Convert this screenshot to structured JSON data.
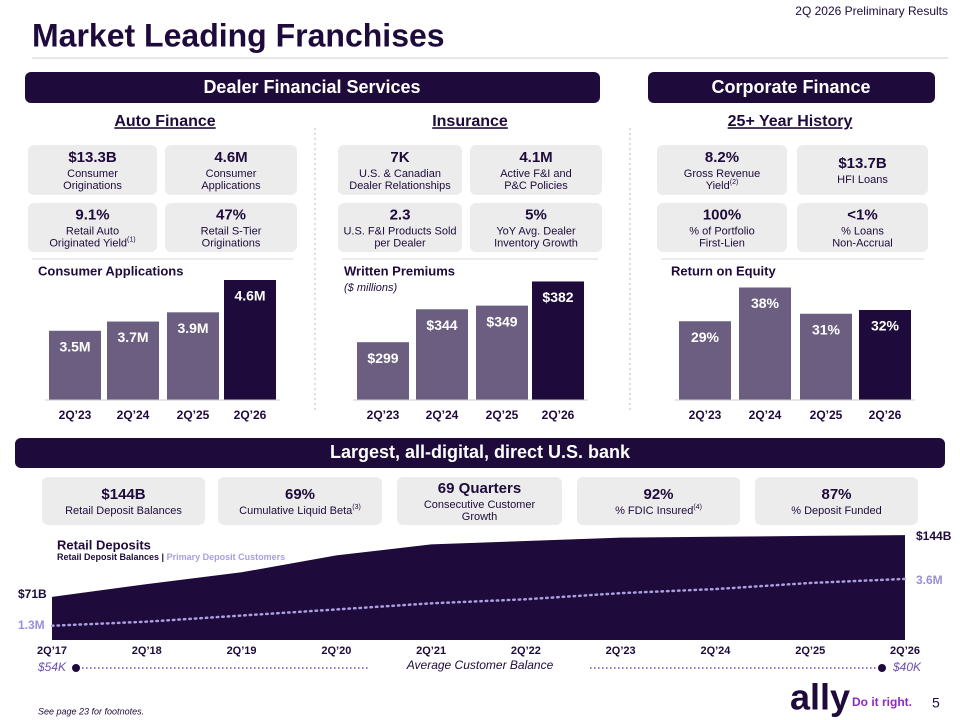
{
  "header": {
    "tag": "2Q 2026 Preliminary Results",
    "title": "Market Leading Franchises"
  },
  "sections": {
    "dfs": "Dealer Financial Services",
    "cf": "Corporate Finance",
    "bank": "Largest, all-digital, direct U.S. bank"
  },
  "kpi_groups": [
    {
      "heading": "Auto Finance",
      "kpis": [
        {
          "value": "$13.3B",
          "label": [
            "Consumer",
            "Originations"
          ]
        },
        {
          "value": "4.6M",
          "label": [
            "Consumer",
            "Applications"
          ]
        },
        {
          "value": "9.1%",
          "label": [
            "Retail Auto",
            "Originated Yield"
          ],
          "note": "(1)"
        },
        {
          "value": "47%",
          "label": [
            "Retail S-Tier",
            "Originations"
          ]
        }
      ]
    },
    {
      "heading": "Insurance",
      "kpis": [
        {
          "value": "7K",
          "label": [
            "U.S. & Canadian",
            "Dealer Relationships"
          ]
        },
        {
          "value": "4.1M",
          "label": [
            "Active F&I and",
            "P&C Policies"
          ]
        },
        {
          "value": "2.3",
          "label": [
            "U.S. F&I Products Sold",
            "per Dealer"
          ]
        },
        {
          "value": "5%",
          "label": [
            "YoY Avg. Dealer",
            "Inventory Growth"
          ]
        }
      ]
    },
    {
      "heading": "25+ Year History",
      "kpis": [
        {
          "value": "8.2%",
          "label": [
            "Gross Revenue",
            "Yield"
          ],
          "note": "(2)"
        },
        {
          "value": "$13.7B",
          "label": [
            "HFI Loans"
          ]
        },
        {
          "value": "100%",
          "label": [
            "% of Portfolio",
            "First-Lien"
          ]
        },
        {
          "value": "<1%",
          "label": [
            "% Loans",
            "Non-Accrual"
          ]
        }
      ]
    }
  ],
  "bank_kpis": [
    {
      "value": "$144B",
      "label": [
        "Retail Deposit Balances"
      ]
    },
    {
      "value": "69%",
      "label": [
        "Cumulative Liquid Beta"
      ],
      "note": "(3)"
    },
    {
      "value": "69 Quarters",
      "label": [
        "Consecutive Customer",
        "Growth"
      ]
    },
    {
      "value": "92%",
      "label": [
        "% FDIC Insured"
      ],
      "note": "(4)"
    },
    {
      "value": "87%",
      "label": [
        "% Deposit Funded"
      ]
    }
  ],
  "chart_data": [
    {
      "type": "bar",
      "title": "Consumer Applications",
      "categories": [
        "2Q’23",
        "2Q’24",
        "2Q’25",
        "2Q’26"
      ],
      "values": [
        3.5,
        3.7,
        3.9,
        4.6
      ],
      "value_labels": [
        "3.5M",
        "3.7M",
        "3.9M",
        "4.6M"
      ],
      "colors": [
        "#6b5e80",
        "#6b5e80",
        "#6b5e80",
        "#1e0b3b"
      ],
      "ylim": [
        2,
        4.6
      ]
    },
    {
      "type": "bar",
      "title": "Written Premiums",
      "subtitle": "($ millions)",
      "categories": [
        "2Q’23",
        "2Q’24",
        "2Q’25",
        "2Q’26"
      ],
      "values": [
        299,
        344,
        349,
        382
      ],
      "value_labels": [
        "$299",
        "$344",
        "$349",
        "$382"
      ],
      "colors": [
        "#6b5e80",
        "#6b5e80",
        "#6b5e80",
        "#1e0b3b"
      ],
      "ylim": [
        220,
        384
      ]
    },
    {
      "type": "bar",
      "title": "Return on Equity",
      "categories": [
        "2Q’23",
        "2Q’24",
        "2Q’25",
        "2Q’26"
      ],
      "values": [
        29,
        38,
        31,
        32
      ],
      "value_labels": [
        "29%",
        "38%",
        "31%",
        "32%"
      ],
      "colors": [
        "#6b5e80",
        "#6b5e80",
        "#6b5e80",
        "#1e0b3b"
      ],
      "ylim": [
        8,
        40
      ]
    },
    {
      "type": "area",
      "title": "Retail Deposits",
      "categories": [
        "2Q’17",
        "2Q’18",
        "2Q’19",
        "2Q’20",
        "2Q’21",
        "2Q’22",
        "2Q’23",
        "2Q’24",
        "2Q’25",
        "2Q’26"
      ],
      "series": [
        {
          "name": "Retail Deposit Balances",
          "color": "#1e0b3b",
          "values": [
            71,
            86,
            100,
            120,
            133,
            137,
            141,
            142,
            143,
            144
          ],
          "value_labels": [
            "$71B",
            null,
            null,
            null,
            null,
            null,
            null,
            null,
            null,
            "$144B"
          ]
        },
        {
          "name": "Primary Deposit Customers",
          "color": "#a99ee0",
          "axis": "y2",
          "values": [
            1.3,
            1.5,
            1.8,
            2.1,
            2.4,
            2.6,
            2.9,
            3.1,
            3.4,
            3.6
          ],
          "value_labels": [
            "1.3M",
            null,
            null,
            null,
            null,
            null,
            null,
            null,
            null,
            "3.6M"
          ]
        }
      ],
      "ylim": [
        20,
        150
      ],
      "y2lim": [
        0.6,
        6
      ],
      "annotation": {
        "text": "Average Customer Balance",
        "start": "$54K",
        "end": "$40K"
      }
    }
  ],
  "footer": {
    "note": "See page 23 for footnotes.",
    "logo": "ally",
    "slogan": "Do it right.",
    "page": "5"
  }
}
